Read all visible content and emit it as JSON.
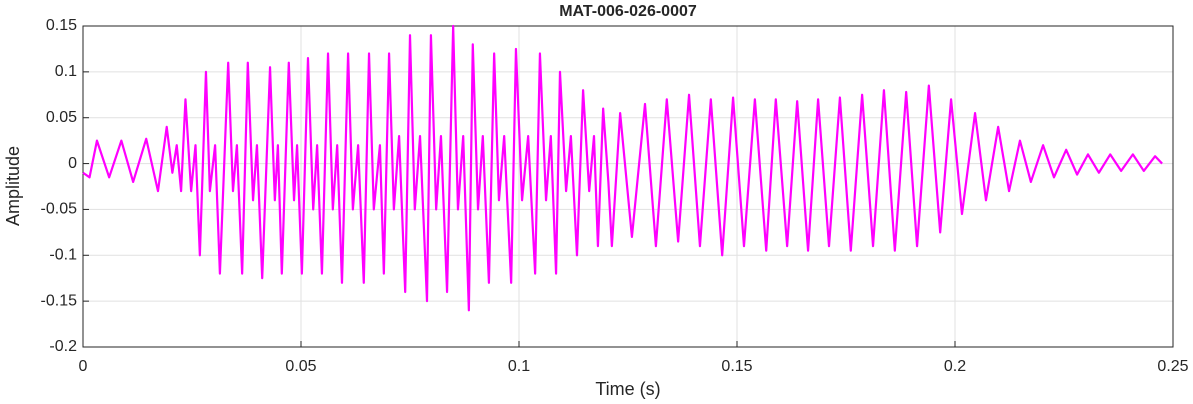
{
  "chart_data": {
    "type": "line",
    "title": "MAT-006-026-0007",
    "xlabel": "Time (s)",
    "ylabel": "Amplitude",
    "xlim": [
      0,
      0.25
    ],
    "xticks": [
      0,
      0.05,
      0.1,
      0.15,
      0.2,
      0.25
    ],
    "ylim": [
      -0.2,
      0.15
    ],
    "yticks": [
      -0.2,
      -0.15,
      -0.1,
      -0.05,
      0,
      0.05,
      0.1,
      0.15
    ],
    "grid": true,
    "series": [
      {
        "color": "#ff00ff",
        "x": [
          0,
          0.0015,
          0.0032,
          0.006,
          0.0088,
          0.0115,
          0.0145,
          0.0172,
          0.0192,
          0.0205,
          0.0215,
          0.0225,
          0.0235,
          0.0248,
          0.0258,
          0.0268,
          0.0282,
          0.0291,
          0.0303,
          0.0314,
          0.0333,
          0.0344,
          0.0353,
          0.0365,
          0.0378,
          0.039,
          0.0399,
          0.0411,
          0.0429,
          0.044,
          0.0447,
          0.0456,
          0.0472,
          0.0484,
          0.0491,
          0.0502,
          0.0516,
          0.0528,
          0.0537,
          0.0548,
          0.0562,
          0.0573,
          0.0583,
          0.0594,
          0.0608,
          0.0619,
          0.0631,
          0.0644,
          0.0656,
          0.0667,
          0.0681,
          0.069,
          0.0702,
          0.0713,
          0.0725,
          0.0739,
          0.075,
          0.0761,
          0.0773,
          0.0789,
          0.0798,
          0.081,
          0.0821,
          0.0835,
          0.0849,
          0.086,
          0.0872,
          0.0885,
          0.0894,
          0.0906,
          0.0917,
          0.0931,
          0.0943,
          0.0954,
          0.0966,
          0.0982,
          0.0993,
          0.1007,
          0.1021,
          0.1037,
          0.1048,
          0.1062,
          0.1073,
          0.1085,
          0.1094,
          0.1108,
          0.1119,
          0.1133,
          0.1147,
          0.1161,
          0.1172,
          0.1181,
          0.1193,
          0.1205,
          0.1213,
          0.1232,
          0.1259,
          0.1289,
          0.1314,
          0.1339,
          0.1365,
          0.139,
          0.1415,
          0.144,
          0.1466,
          0.1491,
          0.1516,
          0.1541,
          0.1567,
          0.1589,
          0.1615,
          0.1638,
          0.1663,
          0.1686,
          0.1711,
          0.1736,
          0.1761,
          0.1787,
          0.1812,
          0.1837,
          0.1862,
          0.1888,
          0.1913,
          0.194,
          0.1966,
          0.1991,
          0.2016,
          0.2046,
          0.2071,
          0.2099,
          0.2124,
          0.2149,
          0.2174,
          0.2202,
          0.2227,
          0.2255,
          0.228,
          0.2305,
          0.233,
          0.2356,
          0.2381,
          0.2408,
          0.2433,
          0.2459,
          0.2475
        ],
        "values": [
          -0.01,
          -0.015,
          0.025,
          -0.015,
          0.025,
          -0.02,
          0.027,
          -0.03,
          0.04,
          -0.01,
          0.02,
          -0.03,
          0.07,
          -0.03,
          0.02,
          -0.1,
          0.1,
          -0.03,
          0.02,
          -0.12,
          0.11,
          -0.03,
          0.02,
          -0.12,
          0.11,
          -0.04,
          0.02,
          -0.125,
          0.105,
          -0.04,
          0.02,
          -0.12,
          0.11,
          -0.04,
          0.02,
          -0.12,
          0.115,
          -0.05,
          0.02,
          -0.12,
          0.12,
          -0.05,
          0.02,
          -0.13,
          0.12,
          -0.05,
          0.02,
          -0.13,
          0.12,
          -0.05,
          0.02,
          -0.12,
          0.12,
          -0.05,
          0.03,
          -0.14,
          0.14,
          -0.05,
          0.03,
          -0.15,
          0.14,
          -0.05,
          0.03,
          -0.14,
          0.15,
          -0.05,
          0.03,
          -0.16,
          0.13,
          -0.05,
          0.03,
          -0.13,
          0.12,
          -0.04,
          0.03,
          -0.13,
          0.125,
          -0.04,
          0.03,
          -0.12,
          0.12,
          -0.04,
          0.03,
          -0.12,
          0.1,
          -0.03,
          0.03,
          -0.1,
          0.08,
          -0.03,
          0.03,
          -0.09,
          0.06,
          -0.02,
          -0.09,
          0.055,
          -0.08,
          0.065,
          -0.09,
          0.07,
          -0.085,
          0.075,
          -0.09,
          0.07,
          -0.1,
          0.072,
          -0.09,
          0.07,
          -0.095,
          0.07,
          -0.09,
          0.068,
          -0.095,
          0.07,
          -0.09,
          0.072,
          -0.095,
          0.075,
          -0.09,
          0.08,
          -0.095,
          0.078,
          -0.09,
          0.085,
          -0.075,
          0.07,
          -0.055,
          0.055,
          -0.04,
          0.04,
          -0.03,
          0.025,
          -0.02,
          0.02,
          -0.015,
          0.015,
          -0.012,
          0.01,
          -0.01,
          0.01,
          -0.008,
          0.01,
          -0.008,
          0.008,
          0
        ]
      }
    ]
  }
}
